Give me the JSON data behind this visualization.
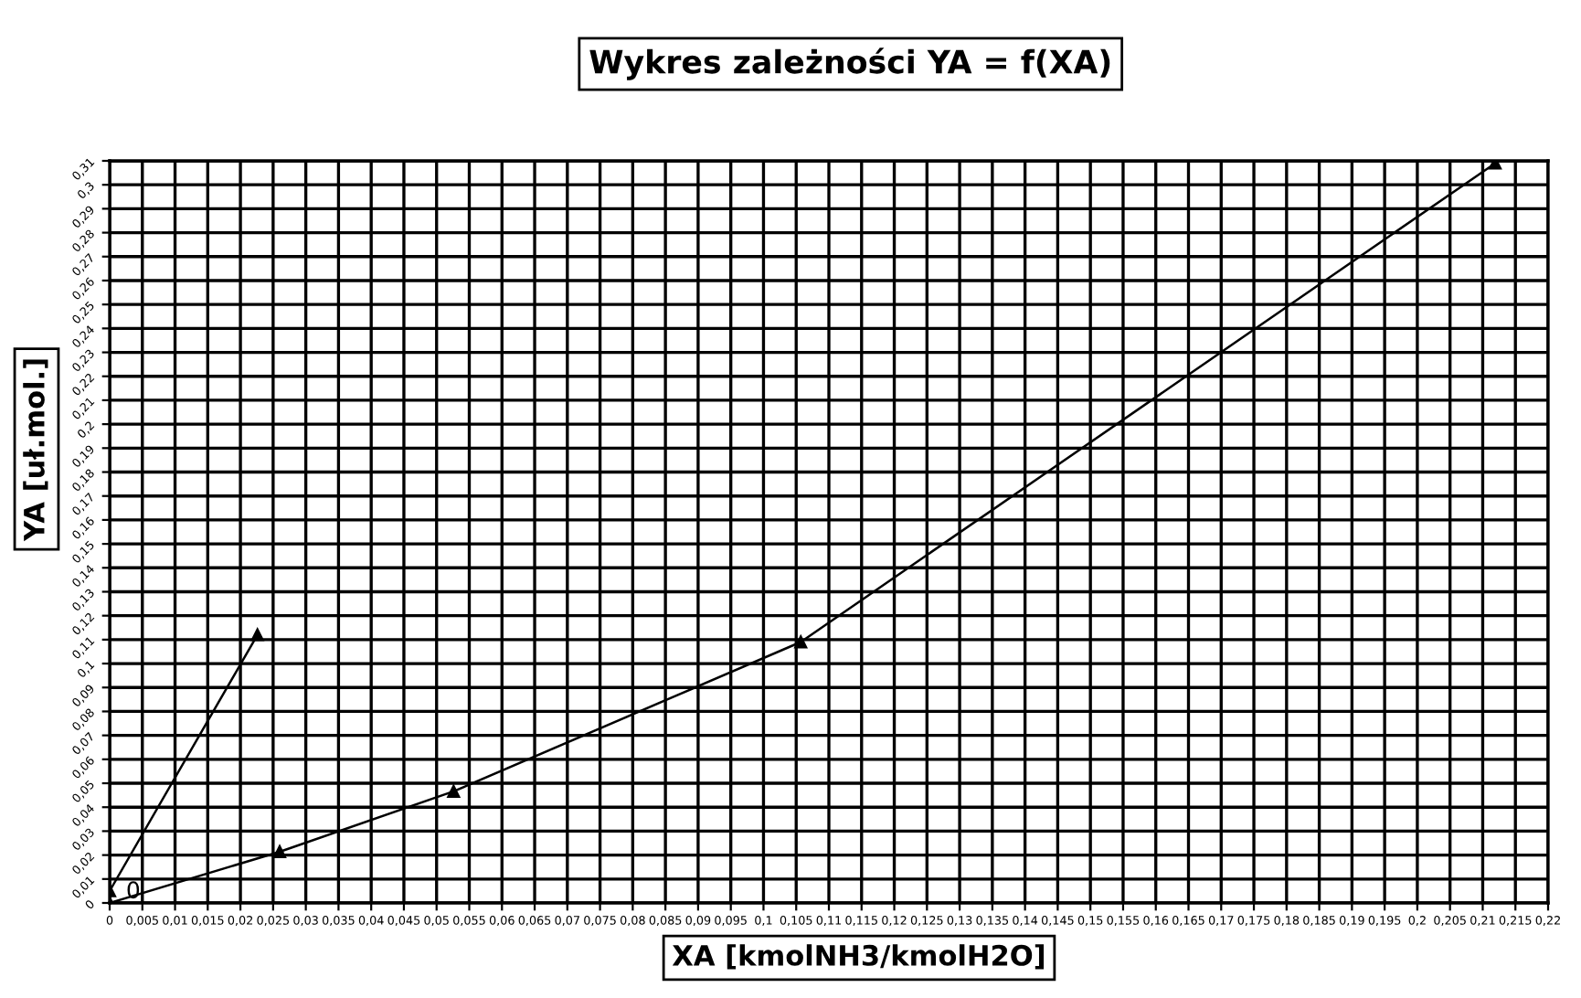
{
  "chart_data": {
    "type": "line",
    "title": "Wykres zależności YA = f(XA)",
    "xlabel": "XA [kmolNH3/kmolH2O]",
    "ylabel": "YA [uł.mol.]",
    "series": [
      {
        "color": "#000000",
        "x": [
          0,
          0.0226
        ],
        "values": [
          0.005,
          0.112
        ]
      },
      {
        "color": "#000000",
        "x": [
          0,
          0.026,
          0.0526,
          0.1057,
          0.2119
        ],
        "values": [
          0,
          0.0214,
          0.0466,
          0.109,
          0.309
        ]
      }
    ],
    "annotations": [
      {
        "text": "0",
        "x": 0.0025,
        "y": 0
      }
    ],
    "marker": "triangle",
    "line_style": "solid",
    "grid": true,
    "legend": false,
    "xlim": [
      0,
      0.22
    ],
    "ylim": [
      0,
      0.31
    ],
    "xticks": [
      {
        "value": 0,
        "label": "0"
      },
      {
        "value": 0.005,
        "label": "0,005"
      },
      {
        "value": 0.01,
        "label": "0,01"
      },
      {
        "value": 0.015,
        "label": "0,015"
      },
      {
        "value": 0.02,
        "label": "0,02"
      },
      {
        "value": 0.025,
        "label": "0,025"
      },
      {
        "value": 0.03,
        "label": "0,03"
      },
      {
        "value": 0.035,
        "label": "0,035"
      },
      {
        "value": 0.04,
        "label": "0,04"
      },
      {
        "value": 0.045,
        "label": "0,045"
      },
      {
        "value": 0.05,
        "label": "0,05"
      },
      {
        "value": 0.055,
        "label": "0,055"
      },
      {
        "value": 0.06,
        "label": "0,06"
      },
      {
        "value": 0.065,
        "label": "0,065"
      },
      {
        "value": 0.07,
        "label": "0,07"
      },
      {
        "value": 0.075,
        "label": "0,075"
      },
      {
        "value": 0.08,
        "label": "0,08"
      },
      {
        "value": 0.085,
        "label": "0,085"
      },
      {
        "value": 0.09,
        "label": "0,09"
      },
      {
        "value": 0.095,
        "label": "0,095"
      },
      {
        "value": 0.1,
        "label": "0,1"
      },
      {
        "value": 0.105,
        "label": "0,105"
      },
      {
        "value": 0.11,
        "label": "0,11"
      },
      {
        "value": 0.115,
        "label": "0,115"
      },
      {
        "value": 0.12,
        "label": "0,12"
      },
      {
        "value": 0.125,
        "label": "0,125"
      },
      {
        "value": 0.13,
        "label": "0,13"
      },
      {
        "value": 0.135,
        "label": "0,135"
      },
      {
        "value": 0.14,
        "label": "0,14"
      },
      {
        "value": 0.145,
        "label": "0,145"
      },
      {
        "value": 0.15,
        "label": "0,15"
      },
      {
        "value": 0.155,
        "label": "0,155"
      },
      {
        "value": 0.16,
        "label": "0,16"
      },
      {
        "value": 0.165,
        "label": "0,165"
      },
      {
        "value": 0.17,
        "label": "0,17"
      },
      {
        "value": 0.175,
        "label": "0,175"
      },
      {
        "value": 0.18,
        "label": "0,18"
      },
      {
        "value": 0.185,
        "label": "0,185"
      },
      {
        "value": 0.19,
        "label": "0,19"
      },
      {
        "value": 0.195,
        "label": "0,195"
      },
      {
        "value": 0.2,
        "label": "0,2"
      },
      {
        "value": 0.205,
        "label": "0,205"
      },
      {
        "value": 0.21,
        "label": "0,21"
      },
      {
        "value": 0.215,
        "label": "0,215"
      },
      {
        "value": 0.22,
        "label": "0,22"
      }
    ],
    "yticks": [
      {
        "value": 0,
        "label": "0"
      },
      {
        "value": 0.01,
        "label": "0,01"
      },
      {
        "value": 0.02,
        "label": "0,02"
      },
      {
        "value": 0.03,
        "label": "0,03"
      },
      {
        "value": 0.04,
        "label": "0,04"
      },
      {
        "value": 0.05,
        "label": "0,05"
      },
      {
        "value": 0.06,
        "label": "0,06"
      },
      {
        "value": 0.07,
        "label": "0,07"
      },
      {
        "value": 0.08,
        "label": "0,08"
      },
      {
        "value": 0.09,
        "label": "0,09"
      },
      {
        "value": 0.1,
        "label": "0,1"
      },
      {
        "value": 0.11,
        "label": "0,11"
      },
      {
        "value": 0.12,
        "label": "0,12"
      },
      {
        "value": 0.13,
        "label": "0,13"
      },
      {
        "value": 0.14,
        "label": "0,14"
      },
      {
        "value": 0.15,
        "label": "0,15"
      },
      {
        "value": 0.16,
        "label": "0,16"
      },
      {
        "value": 0.17,
        "label": "0,17"
      },
      {
        "value": 0.18,
        "label": "0,18"
      },
      {
        "value": 0.19,
        "label": "0,19"
      },
      {
        "value": 0.2,
        "label": "0,2"
      },
      {
        "value": 0.21,
        "label": "0,21"
      },
      {
        "value": 0.22,
        "label": "0,22"
      },
      {
        "value": 0.23,
        "label": "0,23"
      },
      {
        "value": 0.24,
        "label": "0,24"
      },
      {
        "value": 0.25,
        "label": "0,25"
      },
      {
        "value": 0.26,
        "label": "0,26"
      },
      {
        "value": 0.27,
        "label": "0,27"
      },
      {
        "value": 0.28,
        "label": "0,28"
      },
      {
        "value": 0.29,
        "label": "0,29"
      },
      {
        "value": 0.3,
        "label": "0,3"
      },
      {
        "value": 0.31,
        "label": "0,31"
      }
    ]
  }
}
